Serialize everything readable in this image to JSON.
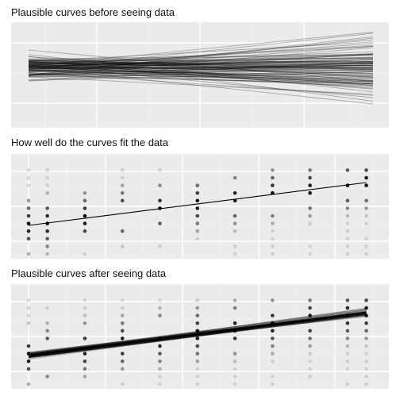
{
  "panel_titles": {
    "prior": "Plausible curves before seeing data",
    "fit": "How well do the curves fit the data",
    "posterior": "Plausible curves after seeing data"
  },
  "colors": {
    "panel_background": "#ebebeb",
    "grid_major": "#ffffff",
    "grid_minor": "#f4f4f4",
    "ink": "#000000"
  },
  "chart_data": [
    {
      "type": "line",
      "title": "Plausible curves before seeing data",
      "grid": true,
      "description": "about 100 prior regression lines, each a (start, end) pair across the x range",
      "xlim": [
        0,
        10
      ],
      "ylim": [
        0,
        10
      ],
      "n_lines": 100,
      "start_range": [
        3.2,
        8.5
      ],
      "end_range": [
        0.3,
        9.5
      ],
      "line_color": "#000000",
      "line_opacity": 0.3
    },
    {
      "type": "scatter",
      "title": "How well do the curves fit the data",
      "grid": true,
      "x": [
        0,
        0.5,
        1.5,
        2.5,
        3.5,
        4.5,
        5.5,
        6.5,
        7.5,
        8.5,
        9
      ],
      "xlim": [
        0,
        9.2
      ],
      "ylim": [
        0,
        10
      ],
      "point_y_range": [
        0,
        9.6
      ],
      "fit_line": {
        "start": 3.0,
        "end": 7.5
      },
      "point_color": "#000000"
    },
    {
      "type": "line",
      "title": "Plausible curves after seeing data",
      "grid": true,
      "x": [
        0,
        0.5,
        1.5,
        2.5,
        3.5,
        4.5,
        5.5,
        6.5,
        7.5,
        8.5,
        9
      ],
      "xlim": [
        0,
        9.2
      ],
      "ylim": [
        0,
        10
      ],
      "point_y_range": [
        0,
        9.6
      ],
      "posterior_mean": {
        "start": 3.0,
        "end": 7.5
      },
      "posterior_band_halfwidth": 0.3,
      "n_draws": 60,
      "line_color": "#000000"
    }
  ]
}
